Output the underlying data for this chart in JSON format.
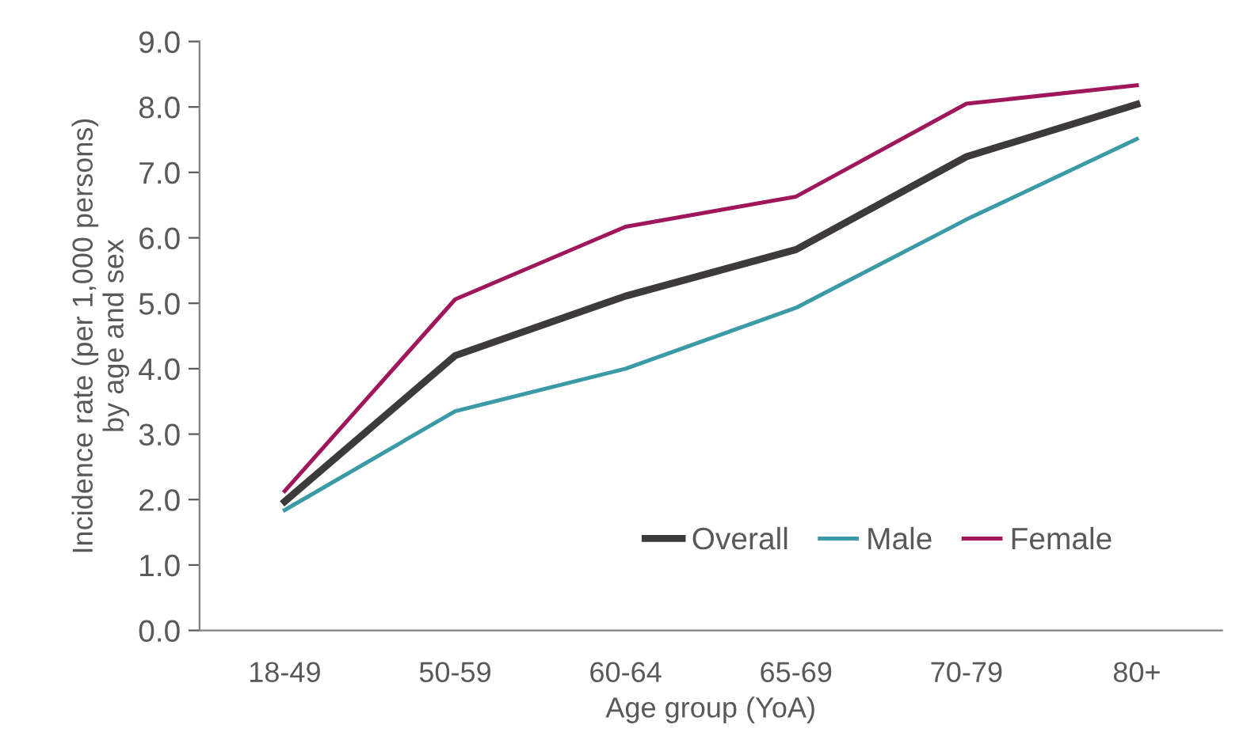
{
  "chart_data": {
    "type": "line",
    "xlabel": "Age group (YoA)",
    "ylabel": "Incidence rate (per 1,000 persons)\nby age and sex",
    "categories": [
      "18-49",
      "50-59",
      "60-64",
      "65-69",
      "70-79",
      "80+"
    ],
    "series": [
      {
        "name": "Overall",
        "color": "#3d3a3b",
        "values": [
          1.97,
          4.2,
          5.11,
          5.82,
          7.24,
          8.04
        ]
      },
      {
        "name": "Male",
        "color": "#3a9aa6",
        "values": [
          1.84,
          3.35,
          4.0,
          4.93,
          6.28,
          7.51
        ]
      },
      {
        "name": "Female",
        "color": "#a0165a",
        "values": [
          2.13,
          5.06,
          6.17,
          6.63,
          8.05,
          8.33
        ]
      }
    ],
    "ylim": [
      0,
      9
    ],
    "yticks": [
      {
        "value": 0,
        "label": "0.0"
      },
      {
        "value": 1,
        "label": "1.0"
      },
      {
        "value": 2,
        "label": "2.0"
      },
      {
        "value": 3,
        "label": "3.0"
      },
      {
        "value": 4,
        "label": "4.0"
      },
      {
        "value": 5,
        "label": "5.0"
      },
      {
        "value": 6,
        "label": "6.0"
      },
      {
        "value": 7,
        "label": "7.0"
      },
      {
        "value": 8,
        "label": "8.0"
      },
      {
        "value": 9,
        "label": "9.0"
      }
    ],
    "grid": false,
    "legend": "bottom right",
    "marker": "none",
    "line_style": "solid"
  }
}
